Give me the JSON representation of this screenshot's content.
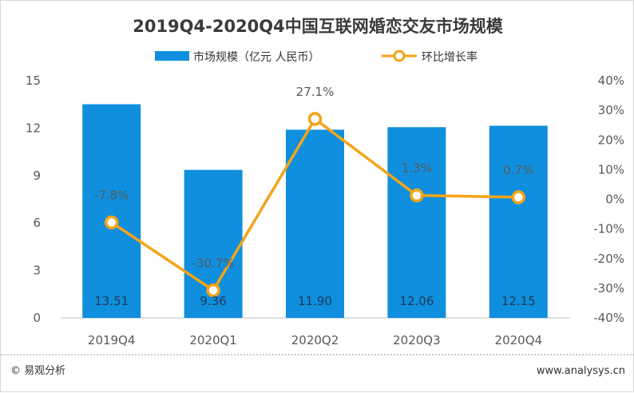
{
  "chart_data": {
    "type": "bar+line",
    "title": "2019Q4-2020Q4中国互联网婚恋交友市场规模",
    "categories": [
      "2019Q4",
      "2020Q1",
      "2020Q2",
      "2020Q3",
      "2020Q4"
    ],
    "series": [
      {
        "name": "市场规模（亿元 人民币）",
        "type": "bar",
        "axis": "left",
        "values": [
          13.51,
          9.36,
          11.9,
          12.06,
          12.15
        ],
        "labels": [
          "13.51",
          "9.36",
          "11.90",
          "12.06",
          "12.15"
        ],
        "color": "#0f8fde"
      },
      {
        "name": "环比增长率",
        "type": "line",
        "axis": "right",
        "values": [
          -7.8,
          -30.7,
          27.1,
          1.3,
          0.7
        ],
        "labels": [
          "-7.8%",
          "-30.7%",
          "27.1%",
          "1.3%",
          "0.7%"
        ],
        "color": "#f4a418"
      }
    ],
    "left_axis": {
      "ylim": [
        0,
        15
      ],
      "ticks": [
        "0",
        "3",
        "6",
        "9",
        "12",
        "15"
      ]
    },
    "right_axis": {
      "ylim": [
        -40,
        40
      ],
      "ticks": [
        "-40%",
        "-30%",
        "-20%",
        "-10%",
        "0%",
        "10%",
        "20%",
        "30%",
        "40%"
      ]
    },
    "grid": false,
    "legend_position": "top"
  },
  "footer": {
    "source": "© 易观分析",
    "url": "www.analysys.cn"
  }
}
